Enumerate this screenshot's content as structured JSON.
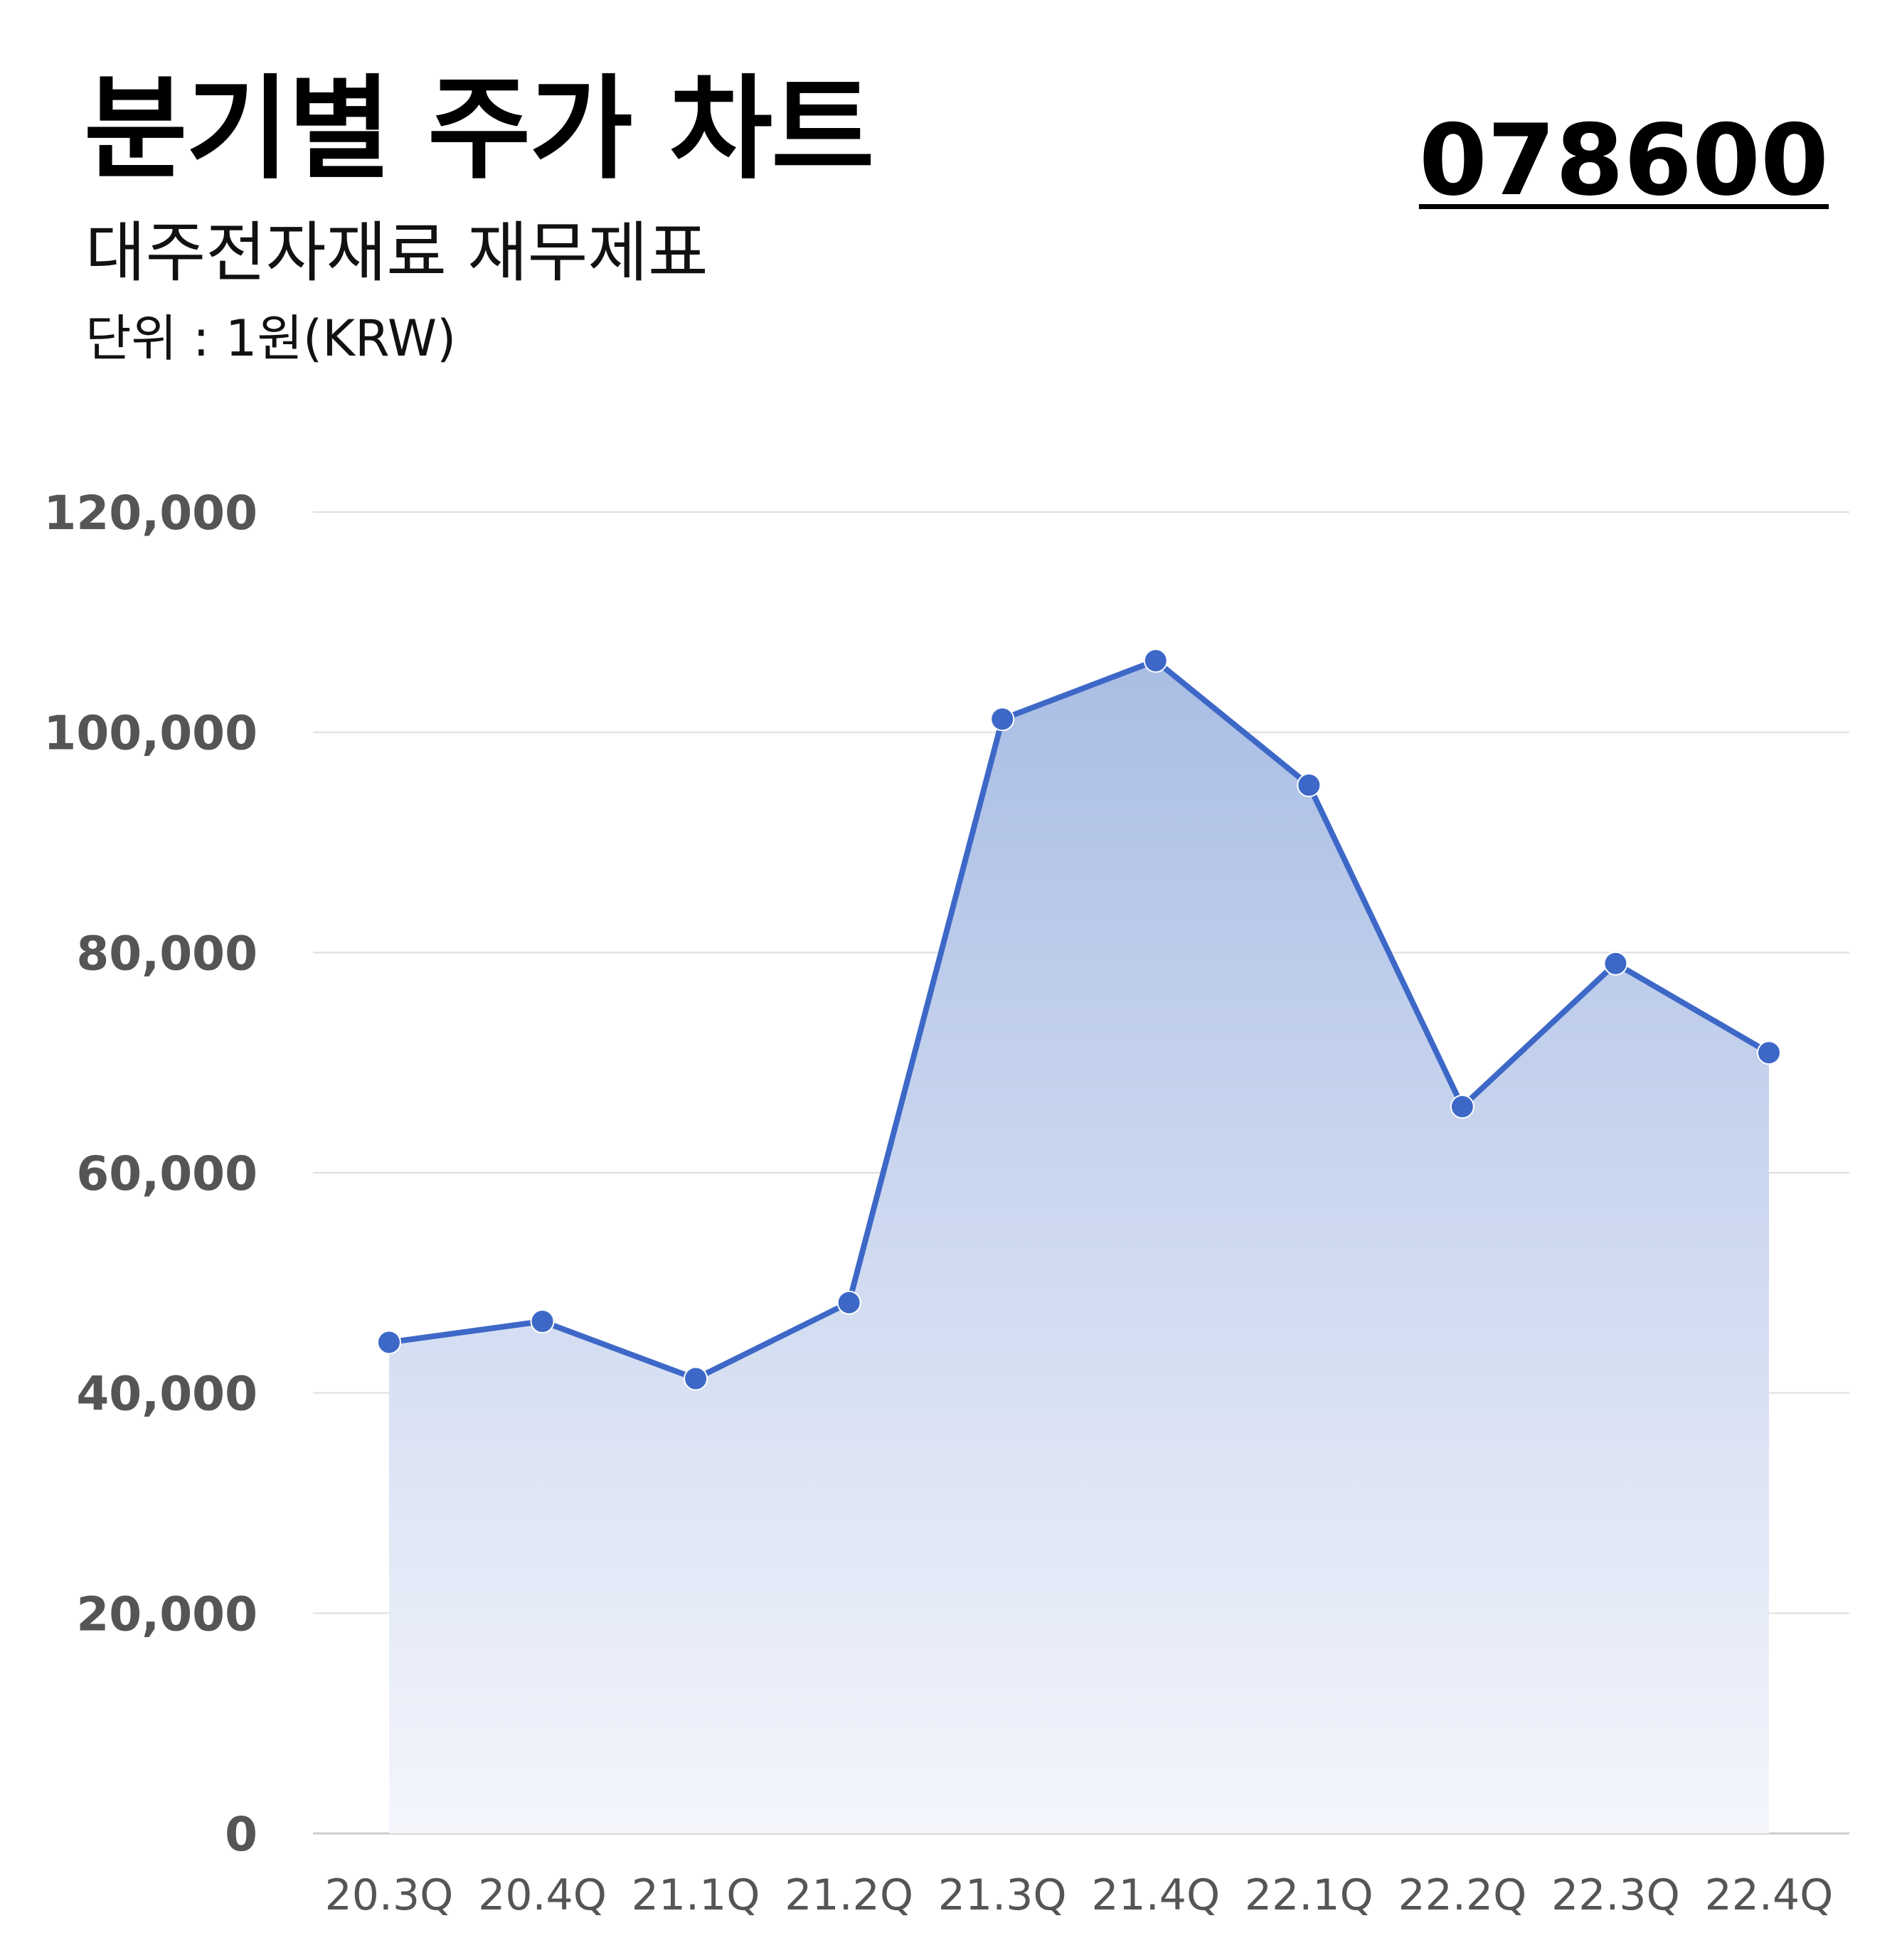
{
  "header": {
    "title": "분기별 주가 차트",
    "subtitle": "대주전자재료 재무제표",
    "unit": "단위 : 1원(KRW)",
    "code": "078600"
  },
  "colors": {
    "line": "#3d68c7",
    "area_top": "#a9bde4",
    "area_bottom": "#f4f6fc",
    "grid": "#dddddd",
    "tick_text": "#555555"
  },
  "chart_data": {
    "type": "area",
    "categories": [
      "20.3Q",
      "20.4Q",
      "21.1Q",
      "21.2Q",
      "21.3Q",
      "21.4Q",
      "22.1Q",
      "22.2Q",
      "22.3Q",
      "22.4Q"
    ],
    "series": [
      {
        "values": [
          44600,
          46500,
          41300,
          48200,
          101200,
          106500,
          95200,
          66000,
          79000,
          70900
        ]
      }
    ],
    "ylim": [
      0,
      120000
    ],
    "yticks": [
      0,
      20000,
      40000,
      60000,
      80000,
      100000,
      120000
    ],
    "ytick_labels": [
      "0",
      "20,000",
      "40,000",
      "60,000",
      "80,000",
      "100,000",
      "120,000"
    ],
    "grid": true,
    "markers": true
  }
}
